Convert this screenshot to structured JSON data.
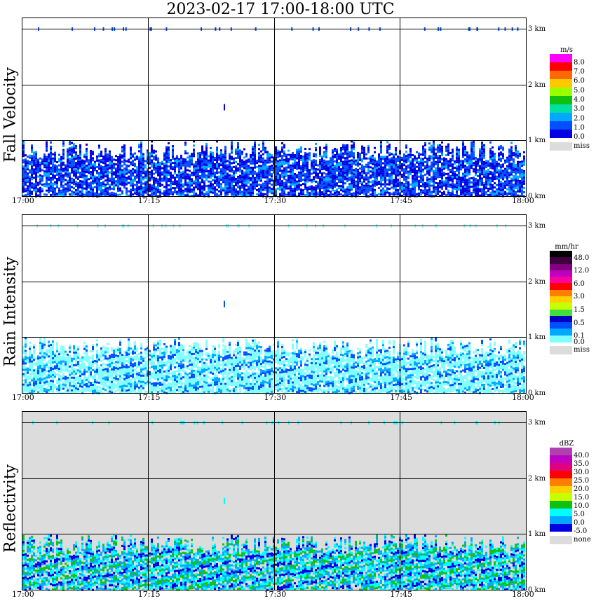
{
  "title": "2023-02-17   17:00-18:00 UTC",
  "chart_data": [
    {
      "type": "heatmap",
      "title": "Fall Velocity",
      "ylabel": "Fall Velocity",
      "x_ticks": [
        "17:00",
        "17:15",
        "17:30",
        "17:45",
        "18:00"
      ],
      "y_ticks": [
        "0 km",
        "1 km",
        "2 km",
        "3 km"
      ],
      "ylim": [
        0,
        3.2
      ],
      "xlim": [
        "17:00",
        "18:00"
      ],
      "grid": true,
      "background": "#ffffff",
      "colorbar": {
        "unit": "m/s",
        "labels": [
          "8.0",
          "7.0",
          "6.0",
          "5.0",
          "4.0",
          "3.0",
          "2.0",
          "1.0",
          "0.0"
        ],
        "colors": [
          "#ff00ff",
          "#ff0000",
          "#ff6a00",
          "#ffc800",
          "#9aff00",
          "#10c010",
          "#00e0a0",
          "#00a8ff",
          "#0050ff",
          "#0000e0"
        ],
        "missing_label": "miss"
      },
      "fill_colors": [
        "#0000e0",
        "#0050ff",
        "#0000e0",
        "#0050ff",
        "#0000e0",
        "#00a8ff"
      ]
    },
    {
      "type": "heatmap",
      "title": "Rain Intensity",
      "ylabel": "Rain Intensity",
      "x_ticks": [
        "17:00",
        "17:15",
        "17:30",
        "17:45",
        "18:00"
      ],
      "y_ticks": [
        "0 km",
        "1 km",
        "2 km",
        "3 km"
      ],
      "ylim": [
        0,
        3.2
      ],
      "xlim": [
        "17:00",
        "18:00"
      ],
      "grid": true,
      "background": "#ffffff",
      "colorbar": {
        "unit": "mm/hr",
        "labels": [
          "48.0",
          "",
          "12.0",
          "",
          "6.0",
          "",
          "3.0",
          "",
          "1.5",
          "",
          "0.5",
          "",
          "0.1",
          "0.0"
        ],
        "colors": [
          "#000000",
          "#400040",
          "#800080",
          "#c000c0",
          "#ff00a0",
          "#ff0000",
          "#ff8000",
          "#ffd000",
          "#c8ff00",
          "#40e040",
          "#0000c0",
          "#0050ff",
          "#00a8ff",
          "#80ffff"
        ],
        "missing_label": "miss"
      },
      "fill_colors": [
        "#80ffff",
        "#80ffff",
        "#00a8ff",
        "#80ffff",
        "#0050ff",
        "#80ffff"
      ]
    },
    {
      "type": "heatmap",
      "title": "Reflectivity",
      "ylabel": "Reflectivity",
      "x_ticks": [
        "17:00",
        "17:15",
        "17:30",
        "17:45",
        "18:00"
      ],
      "y_ticks": [
        "0 km",
        "1 km",
        "2 km",
        "3 km"
      ],
      "ylim": [
        0,
        3.2
      ],
      "xlim": [
        "17:00",
        "18:00"
      ],
      "grid": true,
      "background": "#dcdcdc",
      "colorbar": {
        "unit": "dBZ",
        "labels": [
          "40.0",
          "35.0",
          "30.0",
          "25.0",
          "20.0",
          "15.0",
          "10.0",
          "5.0",
          "0.0",
          "-5.0"
        ],
        "colors": [
          "#b040b0",
          "#c000c0",
          "#e00080",
          "#ff0000",
          "#ff8000",
          "#ffd000",
          "#c8ff00",
          "#10c010",
          "#00ffff",
          "#00a8ff",
          "#0000e0"
        ],
        "missing_label": "none"
      },
      "fill_colors": [
        "#00a8ff",
        "#00ffff",
        "#0000e0",
        "#00a8ff",
        "#00ffff",
        "#10c010"
      ]
    }
  ]
}
